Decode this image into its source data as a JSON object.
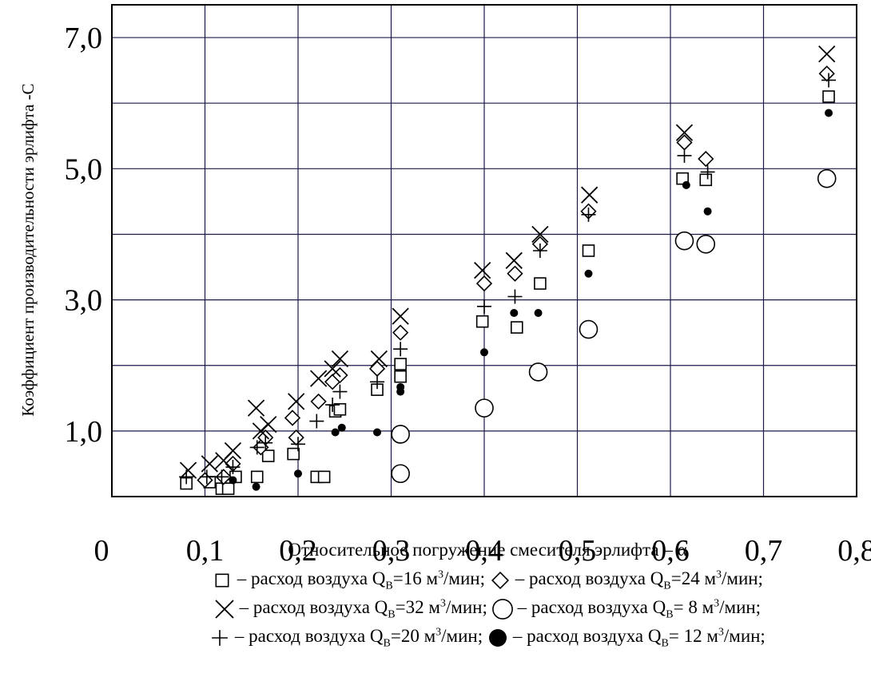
{
  "chart_data": {
    "type": "scatter",
    "title": "",
    "xlabel": "Относительное погружение смесителя эрлифта – α",
    "ylabel": "Коэффициент производительности эрлифта -С",
    "xlim": [
      0,
      0.8
    ],
    "ylim": [
      0,
      7.5
    ],
    "x_ticks": [
      "0",
      "0,1",
      "0,2",
      "0,3",
      "0,4",
      "0,5",
      "0,6",
      "0,7",
      "0,8"
    ],
    "x_tick_values": [
      0,
      0.1,
      0.2,
      0.3,
      0.4,
      0.5,
      0.6,
      0.7,
      0.8
    ],
    "y_ticks": [
      "1,0",
      "3,0",
      "5,0",
      "7,0"
    ],
    "y_tick_values": [
      1.0,
      3.0,
      5.0,
      7.0
    ],
    "y_grid_values": [
      1.0,
      2.0,
      3.0,
      4.0,
      5.0,
      6.0,
      7.0
    ],
    "x_grid_values": [
      0.1,
      0.2,
      0.3,
      0.4,
      0.5,
      0.6,
      0.7
    ],
    "grid": true,
    "grid_color": "#1a1a4a",
    "legend_placement": "bottom",
    "series": [
      {
        "marker": "square",
        "legend_prefix": " – расход воздуха Q",
        "legend_sub": "В",
        "legend_mid": "=16 м",
        "legend_sup": "3",
        "legend_suffix": "/мин;",
        "points": [
          [
            0.08,
            0.2
          ],
          [
            0.105,
            0.22
          ],
          [
            0.118,
            0.12
          ],
          [
            0.125,
            0.12
          ],
          [
            0.133,
            0.3
          ],
          [
            0.156,
            0.3
          ],
          [
            0.168,
            0.62
          ],
          [
            0.195,
            0.65
          ],
          [
            0.22,
            0.3
          ],
          [
            0.228,
            0.3
          ],
          [
            0.24,
            1.3
          ],
          [
            0.245,
            1.33
          ],
          [
            0.285,
            1.63
          ],
          [
            0.31,
            1.83
          ],
          [
            0.31,
            2.02
          ],
          [
            0.398,
            2.67
          ],
          [
            0.435,
            2.58
          ],
          [
            0.46,
            3.25
          ],
          [
            0.512,
            3.75
          ],
          [
            0.613,
            4.85
          ],
          [
            0.638,
            4.83
          ],
          [
            0.77,
            6.1
          ]
        ]
      },
      {
        "marker": "diamond",
        "legend_prefix": " – расход воздуха Q",
        "legend_sub": "В",
        "legend_mid": "=24 м",
        "legend_sup": "3",
        "legend_suffix": "/мин;",
        "points": [
          [
            0.1,
            0.25
          ],
          [
            0.12,
            0.3
          ],
          [
            0.13,
            0.5
          ],
          [
            0.16,
            0.75
          ],
          [
            0.165,
            0.9
          ],
          [
            0.198,
            0.9
          ],
          [
            0.194,
            1.2
          ],
          [
            0.222,
            1.45
          ],
          [
            0.237,
            1.75
          ],
          [
            0.245,
            1.85
          ],
          [
            0.285,
            1.95
          ],
          [
            0.31,
            2.5
          ],
          [
            0.4,
            3.25
          ],
          [
            0.433,
            3.4
          ],
          [
            0.46,
            3.85
          ],
          [
            0.512,
            4.35
          ],
          [
            0.615,
            5.4
          ],
          [
            0.638,
            5.15
          ],
          [
            0.768,
            6.45
          ]
        ]
      },
      {
        "marker": "x",
        "legend_prefix": " – расход воздуха Q",
        "legend_sub": "В",
        "legend_mid": "=32 м",
        "legend_sup": "3",
        "legend_suffix": "/мин;",
        "points": [
          [
            0.082,
            0.4
          ],
          [
            0.105,
            0.5
          ],
          [
            0.12,
            0.55
          ],
          [
            0.13,
            0.7
          ],
          [
            0.155,
            1.35
          ],
          [
            0.16,
            1.0
          ],
          [
            0.168,
            1.1
          ],
          [
            0.198,
            1.45
          ],
          [
            0.222,
            1.8
          ],
          [
            0.237,
            1.95
          ],
          [
            0.245,
            2.1
          ],
          [
            0.287,
            2.1
          ],
          [
            0.31,
            2.75
          ],
          [
            0.398,
            3.45
          ],
          [
            0.432,
            3.6
          ],
          [
            0.46,
            4.0
          ],
          [
            0.513,
            4.6
          ],
          [
            0.615,
            5.55
          ],
          [
            0.768,
            6.75
          ]
        ]
      },
      {
        "marker": "circle",
        "legend_prefix": " – расход воздуха Q",
        "legend_sub": "В",
        "legend_mid": "= 8 м",
        "legend_sup": "3",
        "legend_suffix": "/мин;",
        "points": [
          [
            0.31,
            0.95
          ],
          [
            0.31,
            0.35
          ],
          [
            0.4,
            1.35
          ],
          [
            0.458,
            1.9
          ],
          [
            0.512,
            2.55
          ],
          [
            0.615,
            3.9
          ],
          [
            0.638,
            3.85
          ],
          [
            0.768,
            4.85
          ]
        ]
      },
      {
        "marker": "plus",
        "legend_prefix": " – расход воздуха Q",
        "legend_sub": "В",
        "legend_mid": "=20 м",
        "legend_sup": "3",
        "legend_suffix": "/мин;",
        "points": [
          [
            0.08,
            0.3
          ],
          [
            0.102,
            0.3
          ],
          [
            0.118,
            0.3
          ],
          [
            0.13,
            0.45
          ],
          [
            0.156,
            0.75
          ],
          [
            0.165,
            0.82
          ],
          [
            0.2,
            0.8
          ],
          [
            0.22,
            1.15
          ],
          [
            0.237,
            1.4
          ],
          [
            0.245,
            1.6
          ],
          [
            0.285,
            1.75
          ],
          [
            0.31,
            2.25
          ],
          [
            0.4,
            2.9
          ],
          [
            0.433,
            3.05
          ],
          [
            0.46,
            3.75
          ],
          [
            0.512,
            4.3
          ],
          [
            0.615,
            5.2
          ],
          [
            0.64,
            4.95
          ],
          [
            0.77,
            6.35
          ]
        ]
      },
      {
        "marker": "dot",
        "legend_prefix": " – расход воздуха Q",
        "legend_sub": "В",
        "legend_mid": "= 12 м",
        "legend_sup": "3",
        "legend_suffix": "/мин;",
        "points": [
          [
            0.13,
            0.25
          ],
          [
            0.155,
            0.15
          ],
          [
            0.2,
            0.35
          ],
          [
            0.24,
            0.98
          ],
          [
            0.247,
            1.05
          ],
          [
            0.285,
            0.98
          ],
          [
            0.31,
            1.6
          ],
          [
            0.31,
            1.67
          ],
          [
            0.4,
            2.2
          ],
          [
            0.432,
            2.8
          ],
          [
            0.458,
            2.8
          ],
          [
            0.512,
            3.4
          ],
          [
            0.617,
            4.75
          ],
          [
            0.64,
            4.35
          ],
          [
            0.77,
            5.85
          ]
        ]
      }
    ]
  }
}
